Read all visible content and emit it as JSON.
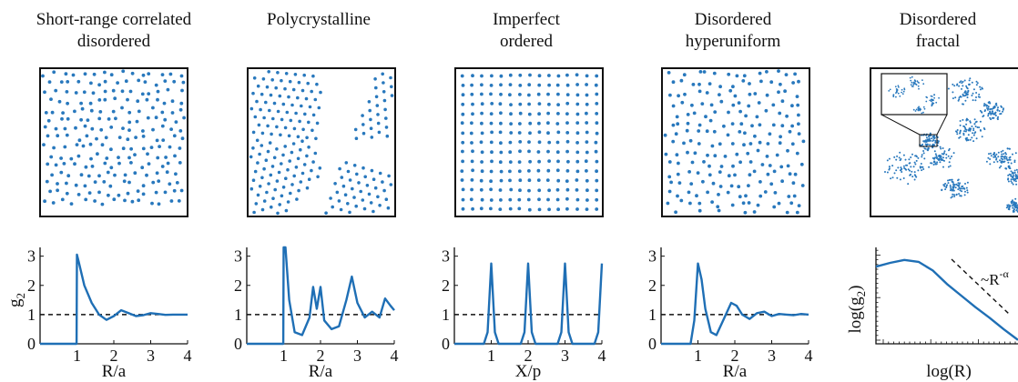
{
  "panels": [
    {
      "title": [
        "Short-range correlated",
        "disordered"
      ],
      "xlabel": "R/a",
      "ylabel": "g",
      "ylabel_sub": "2",
      "xticks": [
        "1",
        "2",
        "3",
        "4"
      ],
      "yticks": [
        "0",
        "1",
        "2",
        "3"
      ]
    },
    {
      "title": [
        "Polycrystalline"
      ],
      "xlabel": "R/a",
      "xticks": [
        "1",
        "2",
        "3",
        "4"
      ],
      "yticks": [
        "0",
        "1",
        "2",
        "3"
      ]
    },
    {
      "title": [
        "Imperfect",
        "ordered"
      ],
      "xlabel": "X/p",
      "xticks": [
        "1",
        "2",
        "3",
        "4"
      ],
      "yticks": [
        "0",
        "1",
        "2",
        "3"
      ]
    },
    {
      "title": [
        "Disordered",
        "hyperuniform"
      ],
      "xlabel": "R/a",
      "xticks": [
        "1",
        "2",
        "3",
        "4"
      ],
      "yticks": [
        "0",
        "1",
        "2",
        "3"
      ]
    },
    {
      "title": [
        "Disordered",
        "fractal"
      ],
      "xlabel": "log(R)",
      "ylabel": "log(g",
      "ylabel_sub": "2",
      "ylabel_tail": ")",
      "annotation_prefix": "~R",
      "annotation_exp": "-α"
    }
  ],
  "colors": {
    "points": "#2878BD",
    "curve": "#1F6FB5",
    "frame": "#111111",
    "reference": "#111111"
  },
  "chart_data": [
    {
      "type": "line",
      "panel": "Short-range correlated disordered",
      "xlabel": "R/a",
      "ylabel": "g2",
      "xlim": [
        0,
        4
      ],
      "ylim": [
        0,
        3.3
      ],
      "x": [
        0,
        0.99,
        1.0,
        1.05,
        1.2,
        1.4,
        1.6,
        1.8,
        2.0,
        2.2,
        2.4,
        2.6,
        2.8,
        3.0,
        3.2,
        3.4,
        3.6,
        3.8,
        4.0
      ],
      "y": [
        0,
        0,
        3.05,
        2.8,
        2.0,
        1.4,
        1.0,
        0.82,
        0.95,
        1.15,
        1.05,
        0.95,
        0.98,
        1.05,
        1.02,
        0.99,
        1.0,
        1.0,
        1.0
      ],
      "reference_y": 1
    },
    {
      "type": "line",
      "panel": "Polycrystalline",
      "xlabel": "R/a",
      "xlim": [
        0,
        4
      ],
      "ylim": [
        0,
        3.3
      ],
      "x": [
        0,
        0.99,
        1.0,
        1.05,
        1.15,
        1.3,
        1.5,
        1.7,
        1.8,
        1.9,
        2.0,
        2.1,
        2.3,
        2.5,
        2.7,
        2.85,
        3.0,
        3.2,
        3.4,
        3.6,
        3.75,
        3.9,
        4.0
      ],
      "y": [
        0,
        0,
        3.3,
        3.3,
        1.5,
        0.4,
        0.3,
        0.9,
        1.95,
        1.2,
        1.95,
        0.8,
        0.5,
        0.6,
        1.5,
        2.3,
        1.4,
        0.9,
        1.1,
        0.9,
        1.55,
        1.3,
        1.15
      ],
      "reference_y": 1
    },
    {
      "type": "line",
      "panel": "Imperfect ordered",
      "xlabel": "X/p",
      "xlim": [
        0,
        4
      ],
      "ylim": [
        0,
        3.3
      ],
      "x": [
        0,
        0.8,
        0.9,
        1.0,
        1.1,
        1.2,
        1.8,
        1.9,
        2.0,
        2.1,
        2.2,
        2.8,
        2.9,
        3.0,
        3.1,
        3.2,
        3.8,
        3.9,
        4.0
      ],
      "y": [
        0,
        0,
        0.4,
        2.75,
        0.4,
        0,
        0,
        0.4,
        2.75,
        0.4,
        0,
        0,
        0.4,
        2.75,
        0.4,
        0,
        0,
        0.4,
        2.75
      ],
      "reference_y": 1
    },
    {
      "type": "line",
      "panel": "Disordered hyperuniform",
      "xlabel": "R/a",
      "xlim": [
        0,
        4
      ],
      "ylim": [
        0,
        3.3
      ],
      "x": [
        0,
        0.8,
        0.9,
        1.0,
        1.1,
        1.2,
        1.35,
        1.5,
        1.7,
        1.9,
        2.05,
        2.2,
        2.4,
        2.6,
        2.8,
        3.0,
        3.2,
        3.4,
        3.6,
        3.8,
        4.0
      ],
      "y": [
        0,
        0,
        0.8,
        2.75,
        2.2,
        1.2,
        0.4,
        0.3,
        0.85,
        1.4,
        1.3,
        1.0,
        0.85,
        1.05,
        1.1,
        0.95,
        1.02,
        1.0,
        0.98,
        1.02,
        1.0
      ],
      "reference_y": 1
    },
    {
      "type": "line",
      "panel": "Disordered fractal",
      "xlabel": "log(R)",
      "ylabel": "log(g2)",
      "xscale": "log",
      "yscale": "log",
      "annotation": "~R^-α",
      "x": [
        0,
        0.1,
        0.2,
        0.3,
        0.4,
        0.5,
        0.6,
        0.7,
        0.8,
        0.9,
        1.0
      ],
      "y": [
        0.8,
        0.84,
        0.87,
        0.85,
        0.76,
        0.62,
        0.5,
        0.38,
        0.27,
        0.15,
        0.04
      ]
    }
  ]
}
